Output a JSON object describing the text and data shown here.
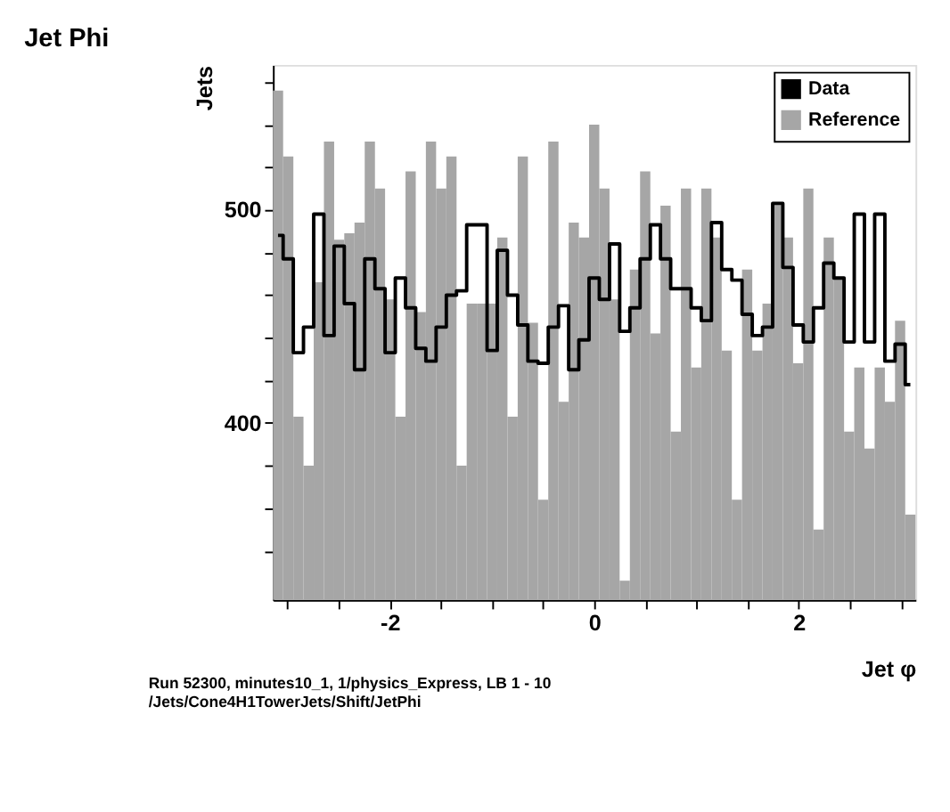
{
  "chart_data": {
    "type": "histogram",
    "title": "Jet Phi",
    "xlabel": "Jet φ",
    "ylabel": "Jets",
    "annotations": [
      "Run 52300, minutes10_1, 1/physics_Express, LB 1 - 10",
      "/Jets/Cone4H1TowerJets/Shift/JetPhi"
    ],
    "bins": [
      -3.142,
      -3.042,
      -2.942,
      -2.843,
      -2.743,
      -2.643,
      -2.543,
      -2.444,
      -2.344,
      -2.244,
      -2.144,
      -2.045,
      -1.945,
      -1.845,
      -1.745,
      -1.646,
      -1.546,
      -1.446,
      -1.346,
      -1.247,
      -1.147,
      -1.047,
      -0.948,
      -0.848,
      -0.748,
      -0.648,
      -0.549,
      -0.449,
      -0.349,
      -0.249,
      -0.15,
      -0.05,
      0.05,
      0.15,
      0.249,
      0.349,
      0.449,
      0.549,
      0.648,
      0.748,
      0.848,
      0.948,
      1.047,
      1.147,
      1.247,
      1.346,
      1.446,
      1.546,
      1.646,
      1.745,
      1.845,
      1.945,
      2.045,
      2.144,
      2.244,
      2.344,
      2.444,
      2.543,
      2.643,
      2.743,
      2.843,
      2.942,
      3.042,
      3.142
    ],
    "series": [
      {
        "name": "Data",
        "type": "step",
        "color": "#000000",
        "x": [
          -3.092,
          -2.992,
          -2.893,
          -2.793,
          -2.693,
          -2.593,
          -2.494,
          -2.394,
          -2.294,
          -2.194,
          -2.095,
          -1.995,
          -1.895,
          -1.795,
          -1.696,
          -1.596,
          -1.496,
          -1.396,
          -1.297,
          -1.197,
          -1.097,
          -0.998,
          -0.898,
          -0.798,
          -0.698,
          -0.599,
          -0.499,
          -0.399,
          -0.299,
          -0.2,
          -0.1,
          0.0,
          0.1,
          0.2,
          0.299,
          0.399,
          0.499,
          0.599,
          0.698,
          0.798,
          0.898,
          0.998,
          1.097,
          1.197,
          1.297,
          1.396,
          1.496,
          1.596,
          1.696,
          1.795,
          1.895,
          1.995,
          2.095,
          2.194,
          2.294,
          2.394,
          2.494,
          2.593,
          2.693,
          2.793,
          2.893,
          2.992,
          3.092
        ],
        "values": [
          488,
          477,
          433,
          445,
          498,
          441,
          483,
          456,
          425,
          477,
          463,
          433,
          468,
          454,
          435,
          429,
          445,
          460,
          462,
          493,
          493,
          434,
          481,
          460,
          446,
          429,
          428,
          445,
          455,
          425,
          439,
          468,
          458,
          484,
          443,
          454,
          477,
          493,
          477,
          463,
          463,
          454,
          448,
          494,
          472,
          467,
          451,
          441,
          445,
          503,
          473,
          446,
          438,
          454,
          475,
          468,
          438,
          498,
          438,
          498,
          429,
          437,
          418
        ]
      },
      {
        "name": "Reference",
        "color": "#a6a6a6",
        "values": [
          556,
          525,
          403,
          380,
          466,
          532,
          486,
          489,
          494,
          532,
          510,
          458,
          403,
          518,
          452,
          532,
          510,
          525,
          380,
          456,
          456,
          456,
          487,
          403,
          525,
          447,
          364,
          532,
          410,
          494,
          487,
          540,
          510,
          458,
          326,
          472,
          518,
          442,
          502,
          396,
          510,
          426,
          510,
          487,
          434,
          364,
          472,
          434,
          456,
          502,
          487,
          428,
          510,
          350,
          487,
          468,
          396,
          426,
          388,
          426,
          410,
          448,
          357
        ]
      }
    ],
    "xlim": [
      -3.142,
      3.142
    ],
    "xticks": [
      {
        "value": -3,
        "label": null
      },
      {
        "value": -2.5,
        "label": null
      },
      -2,
      {
        "value": -1.5,
        "label": null
      },
      {
        "value": -1,
        "label": null
      },
      {
        "value": -0.5,
        "label": null
      },
      0,
      {
        "value": 0.5,
        "label": null
      },
      {
        "value": 1,
        "label": null
      },
      {
        "value": 1.5,
        "label": null
      },
      2,
      {
        "value": 2.5,
        "label": null
      },
      {
        "value": 3,
        "label": null
      }
    ],
    "ylim": [
      317,
      568
    ],
    "yticks": [
      {
        "value": 340,
        "label": null
      },
      {
        "value": 360,
        "label": null
      },
      {
        "value": 380,
        "label": null
      },
      400,
      {
        "value": 420,
        "label": null
      },
      {
        "value": 440,
        "label": null
      },
      {
        "value": 460,
        "label": null
      },
      {
        "value": 480,
        "label": null
      },
      500,
      {
        "value": 520,
        "label": null
      },
      {
        "value": 540,
        "label": null
      },
      {
        "value": 560,
        "label": null
      }
    ],
    "grid": false,
    "legend": "top right"
  }
}
